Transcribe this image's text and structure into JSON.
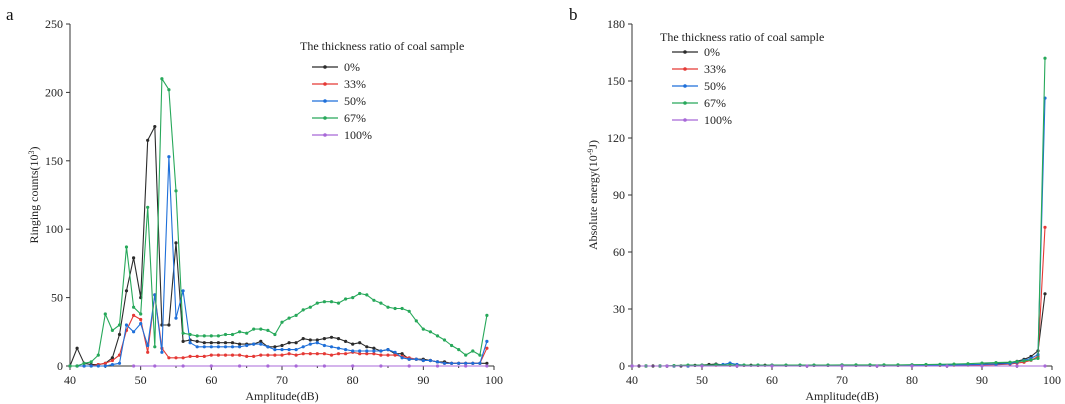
{
  "chart_data": [
    {
      "type": "line",
      "panel": "a",
      "xlabel": "Amplitude(dB)",
      "ylabel": "Ringing counts(10",
      "ylabel_exp": "3",
      "ylabel_close": ")",
      "xlim": [
        40,
        100
      ],
      "ylim": [
        0,
        250
      ],
      "xticks": [
        "40",
        "50",
        "60",
        "70",
        "80",
        "90",
        "100"
      ],
      "yticks": [
        "0",
        "50",
        "100",
        "150",
        "200",
        "250"
      ],
      "legend_title": "The thickness ratio of coal sample",
      "series": [
        {
          "name": "0%",
          "color": "#2b2b2b",
          "x": [
            40,
            41,
            42,
            43,
            44,
            45,
            46,
            47,
            48,
            49,
            50,
            51,
            52,
            53,
            54,
            55,
            56,
            57,
            58,
            59,
            60,
            61,
            62,
            63,
            64,
            65,
            66,
            67,
            68,
            69,
            70,
            71,
            72,
            73,
            74,
            75,
            76,
            77,
            78,
            79,
            80,
            81,
            82,
            83,
            84,
            85,
            86,
            87,
            88,
            89,
            90,
            91,
            92,
            93,
            94,
            95,
            96,
            97,
            98,
            99
          ],
          "y": [
            0,
            13,
            2,
            1,
            1,
            2,
            6,
            23,
            55,
            79,
            50,
            165,
            175,
            30,
            30,
            90,
            18,
            19,
            18,
            17,
            17,
            17,
            17,
            17,
            16,
            16,
            16,
            18,
            14,
            14,
            15,
            17,
            17,
            20,
            19,
            19,
            20,
            21,
            20,
            18,
            16,
            17,
            14,
            13,
            11,
            12,
            9,
            9,
            5,
            5,
            5,
            4,
            3,
            3,
            2,
            2,
            2,
            2,
            2,
            2
          ]
        },
        {
          "name": "33%",
          "color": "#e53935",
          "x": [
            40,
            41,
            42,
            43,
            44,
            45,
            46,
            47,
            48,
            49,
            50,
            51,
            52,
            53,
            54,
            55,
            56,
            57,
            58,
            59,
            60,
            61,
            62,
            63,
            64,
            65,
            66,
            67,
            68,
            69,
            70,
            71,
            72,
            73,
            74,
            75,
            76,
            77,
            78,
            79,
            80,
            81,
            82,
            83,
            84,
            85,
            86,
            87,
            88,
            89,
            90,
            91,
            92,
            93,
            94,
            95,
            96,
            97,
            98,
            99
          ],
          "y": [
            0,
            0,
            0,
            0,
            1,
            2,
            4,
            8,
            26,
            37,
            34,
            10,
            52,
            13,
            6,
            6,
            6,
            7,
            7,
            7,
            8,
            8,
            8,
            8,
            8,
            7,
            7,
            8,
            8,
            8,
            8,
            9,
            8,
            9,
            9,
            9,
            9,
            8,
            9,
            9,
            10,
            9,
            9,
            9,
            8,
            8,
            8,
            7,
            6,
            5,
            4,
            4,
            3,
            2,
            2,
            2,
            2,
            2,
            2,
            13
          ]
        },
        {
          "name": "50%",
          "color": "#1e6fd9",
          "x": [
            40,
            41,
            42,
            43,
            44,
            45,
            46,
            47,
            48,
            49,
            50,
            51,
            52,
            53,
            54,
            55,
            56,
            57,
            58,
            59,
            60,
            61,
            62,
            63,
            64,
            65,
            66,
            67,
            68,
            69,
            70,
            71,
            72,
            73,
            74,
            75,
            76,
            77,
            78,
            79,
            80,
            81,
            82,
            83,
            84,
            85,
            86,
            87,
            88,
            89,
            90,
            91,
            92,
            93,
            94,
            95,
            96,
            97,
            98,
            99
          ],
          "y": [
            0,
            0,
            0,
            0,
            0,
            0,
            1,
            2,
            30,
            25,
            31,
            15,
            52,
            10,
            153,
            35,
            55,
            17,
            14,
            14,
            14,
            14,
            14,
            14,
            14,
            15,
            16,
            16,
            14,
            12,
            12,
            12,
            12,
            14,
            16,
            17,
            15,
            14,
            13,
            12,
            11,
            11,
            11,
            11,
            11,
            12,
            10,
            6,
            5,
            5,
            4,
            4,
            3,
            2,
            2,
            2,
            2,
            2,
            2,
            18
          ]
        },
        {
          "name": "67%",
          "color": "#27a85a",
          "x": [
            40,
            41,
            42,
            43,
            44,
            45,
            46,
            47,
            48,
            49,
            50,
            51,
            52,
            53,
            54,
            55,
            56,
            57,
            58,
            59,
            60,
            61,
            62,
            63,
            64,
            65,
            66,
            67,
            68,
            69,
            70,
            71,
            72,
            73,
            74,
            75,
            76,
            77,
            78,
            79,
            80,
            81,
            82,
            83,
            84,
            85,
            86,
            87,
            88,
            89,
            90,
            91,
            92,
            93,
            94,
            95,
            96,
            97,
            98,
            99
          ],
          "y": [
            0,
            0,
            2,
            3,
            8,
            38,
            26,
            30,
            87,
            43,
            38,
            116,
            14,
            210,
            202,
            128,
            24,
            23,
            22,
            22,
            22,
            22,
            23,
            23,
            25,
            24,
            27,
            27,
            26,
            23,
            32,
            35,
            37,
            41,
            43,
            46,
            47,
            47,
            46,
            49,
            50,
            53,
            52,
            48,
            46,
            43,
            42,
            42,
            40,
            33,
            27,
            25,
            22,
            19,
            15,
            12,
            8,
            11,
            8,
            37
          ]
        },
        {
          "name": "100%",
          "color": "#a868d8",
          "x": [
            49,
            52,
            56,
            60,
            64,
            68,
            72,
            76,
            80,
            84,
            88,
            92,
            96,
            99
          ],
          "y": [
            0,
            0,
            0,
            0,
            0,
            0,
            0,
            0,
            0,
            0,
            0,
            0,
            0,
            0
          ]
        }
      ]
    },
    {
      "type": "line",
      "panel": "b",
      "xlabel": "Amplitude(dB)",
      "ylabel": "Absolute energy(10",
      "ylabel_exp": "-9",
      "ylabel_close": "J)",
      "xlim": [
        40,
        100
      ],
      "ylim": [
        0,
        180
      ],
      "xticks": [
        "40",
        "50",
        "60",
        "70",
        "80",
        "90",
        "100"
      ],
      "yticks": [
        "0",
        "30",
        "60",
        "90",
        "120",
        "150",
        "180"
      ],
      "legend_title": "The thickness ratio of coal sample",
      "series": [
        {
          "name": "0%",
          "color": "#2b2b2b",
          "x": [
            40,
            41,
            42,
            43,
            44,
            45,
            46,
            47,
            48,
            49,
            50,
            51,
            52,
            53,
            54,
            55,
            56,
            57,
            58,
            59,
            60,
            62,
            64,
            66,
            68,
            70,
            72,
            74,
            76,
            78,
            80,
            82,
            84,
            86,
            88,
            90,
            92,
            94,
            95,
            96,
            97,
            98,
            99
          ],
          "y": [
            0,
            0,
            0,
            0,
            0,
            0,
            0,
            0,
            0,
            0.3,
            0.5,
            0.8,
            1,
            0.6,
            0.5,
            0.5,
            0.4,
            0.4,
            0.4,
            0.4,
            0.4,
            0.4,
            0.4,
            0.4,
            0.4,
            0.4,
            0.4,
            0.4,
            0.4,
            0.4,
            0.4,
            0.5,
            0.5,
            0.6,
            0.7,
            0.9,
            1.2,
            1.8,
            2.5,
            3.5,
            5,
            8,
            38
          ]
        },
        {
          "name": "33%",
          "color": "#e53935",
          "x": [
            40,
            42,
            44,
            46,
            48,
            50,
            52,
            54,
            56,
            58,
            60,
            62,
            64,
            66,
            68,
            70,
            72,
            74,
            76,
            78,
            80,
            82,
            84,
            86,
            88,
            90,
            92,
            94,
            95,
            96,
            97,
            98,
            99
          ],
          "y": [
            0,
            0,
            0,
            0,
            0,
            0.2,
            0.4,
            0.4,
            0.3,
            0.3,
            0.3,
            0.3,
            0.3,
            0.3,
            0.3,
            0.3,
            0.3,
            0.3,
            0.3,
            0.3,
            0.3,
            0.3,
            0.3,
            0.4,
            0.5,
            0.6,
            0.7,
            1,
            1.5,
            2,
            3,
            5,
            73
          ]
        },
        {
          "name": "50%",
          "color": "#1e6fd9",
          "x": [
            40,
            42,
            44,
            46,
            48,
            50,
            52,
            53,
            54,
            55,
            56,
            58,
            60,
            62,
            64,
            66,
            68,
            70,
            72,
            74,
            76,
            78,
            80,
            82,
            84,
            86,
            88,
            90,
            92,
            94,
            95,
            96,
            97,
            98,
            99
          ],
          "y": [
            0,
            0,
            0,
            0,
            0,
            0.3,
            0.6,
            0.8,
            1.5,
            0.8,
            0.5,
            0.5,
            0.4,
            0.4,
            0.4,
            0.4,
            0.4,
            0.4,
            0.4,
            0.4,
            0.4,
            0.4,
            0.4,
            0.5,
            0.5,
            0.6,
            0.7,
            0.8,
            1,
            1.3,
            2,
            3,
            4,
            6,
            141
          ]
        },
        {
          "name": "67%",
          "color": "#27a85a",
          "x": [
            40,
            42,
            44,
            46,
            48,
            50,
            52,
            54,
            56,
            58,
            60,
            62,
            64,
            66,
            68,
            70,
            72,
            74,
            76,
            78,
            80,
            82,
            84,
            86,
            88,
            90,
            92,
            94,
            95,
            96,
            97,
            98,
            99
          ],
          "y": [
            0,
            0,
            0,
            0.2,
            0.5,
            0.5,
            0.6,
            0.6,
            0.5,
            0.5,
            0.5,
            0.5,
            0.5,
            0.5,
            0.5,
            0.6,
            0.6,
            0.6,
            0.6,
            0.6,
            0.7,
            0.8,
            0.9,
            1,
            1.2,
            1.5,
            1.8,
            2,
            2.3,
            2.7,
            3.2,
            4,
            162
          ]
        },
        {
          "name": "100%",
          "color": "#a868d8",
          "x": [
            40,
            45,
            50,
            55,
            60,
            65,
            70,
            75,
            80,
            85,
            90,
            95,
            99
          ],
          "y": [
            0,
            0,
            0,
            0,
            0,
            0,
            0,
            0,
            0,
            0,
            0,
            0,
            0
          ]
        }
      ]
    }
  ]
}
